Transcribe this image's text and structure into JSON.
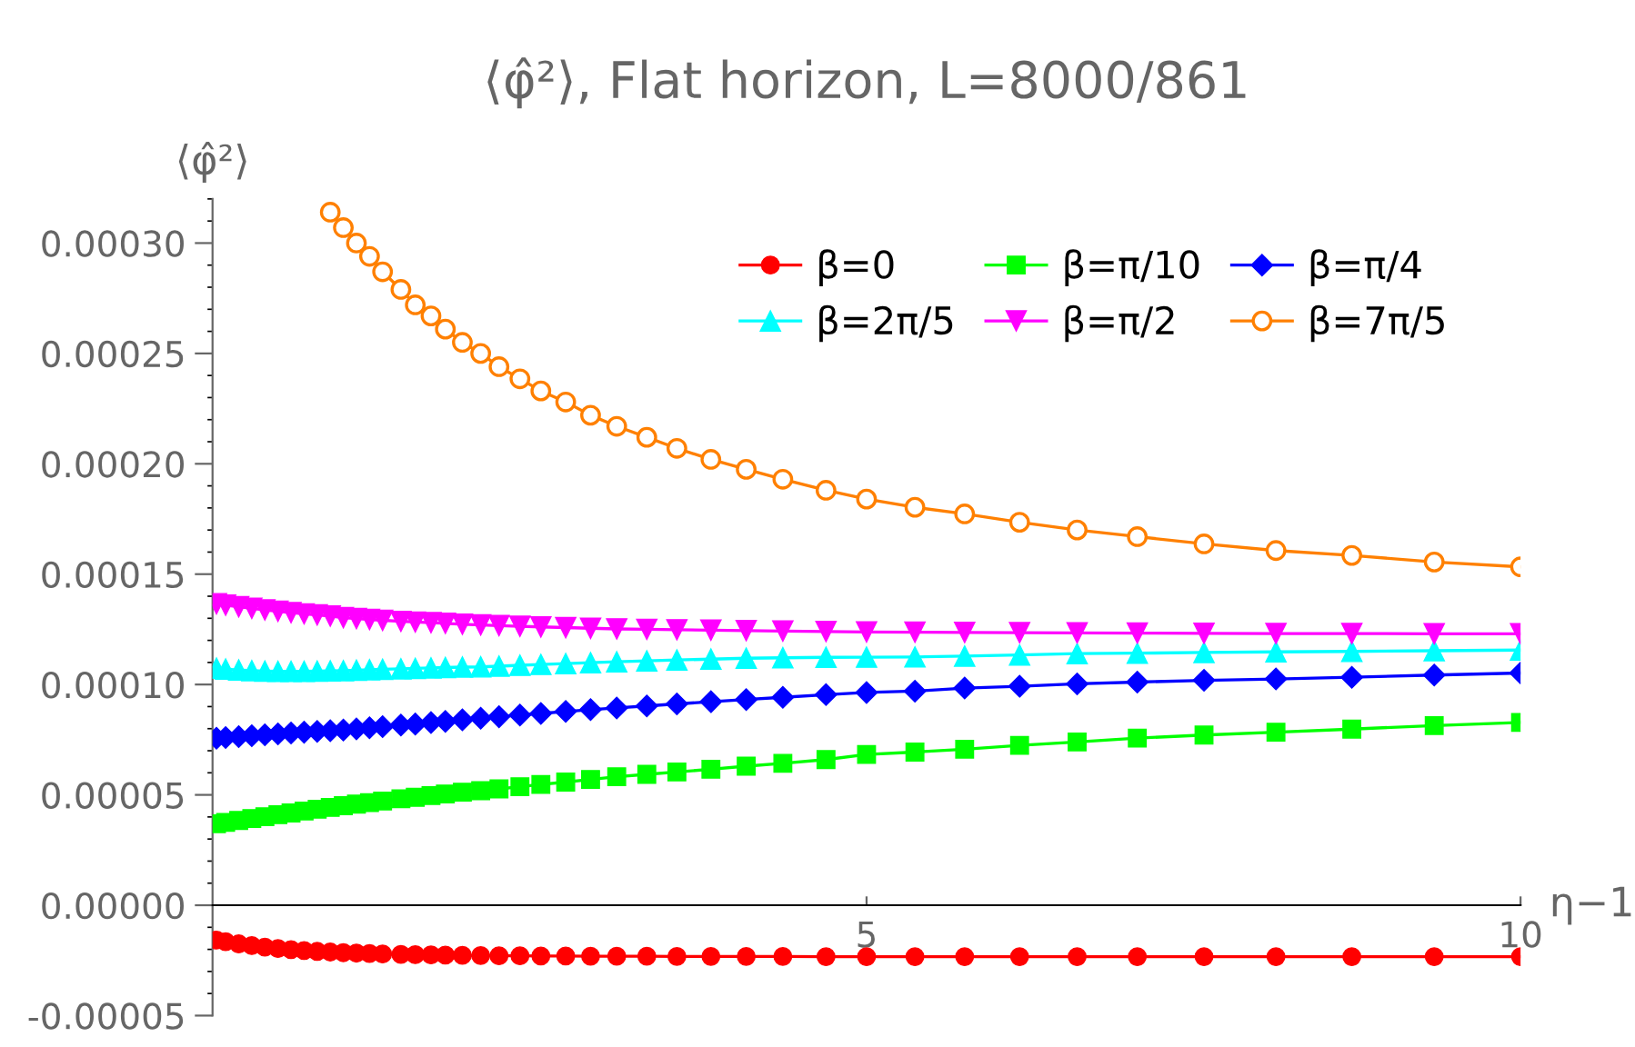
{
  "chart_data": {
    "type": "line",
    "title": "⟨φ̂²⟩, Flat horizon, L=8000/861",
    "xlabel": "η−1",
    "ylabel": "⟨φ̂²⟩",
    "x": [
      0.03,
      0.1,
      0.2,
      0.3,
      0.4,
      0.5,
      0.6,
      0.7,
      0.8,
      0.9,
      1.0,
      1.1,
      1.2,
      1.3,
      1.44,
      1.55,
      1.67,
      1.78,
      1.91,
      2.05,
      2.19,
      2.35,
      2.51,
      2.7,
      2.89,
      3.09,
      3.32,
      3.55,
      3.81,
      4.08,
      4.36,
      4.69,
      5.0,
      5.37,
      5.75,
      6.17,
      6.61,
      7.07,
      7.58,
      8.13,
      8.71,
      9.34,
      10.0
    ],
    "series": [
      {
        "name": "β=0",
        "color": "#ff0000",
        "marker": "circle",
        "values": [
          -1.58e-05,
          -1.65e-05,
          -1.75e-05,
          -1.83e-05,
          -1.9e-05,
          -1.96e-05,
          -2.01e-05,
          -2.05e-05,
          -2.09e-05,
          -2.12e-05,
          -2.15e-05,
          -2.17e-05,
          -2.19e-05,
          -2.21e-05,
          -2.23e-05,
          -2.24e-05,
          -2.25e-05,
          -2.26e-05,
          -2.27e-05,
          -2.28e-05,
          -2.29e-05,
          -2.29e-05,
          -2.3e-05,
          -2.3e-05,
          -2.31e-05,
          -2.31e-05,
          -2.31e-05,
          -2.32e-05,
          -2.32e-05,
          -2.32e-05,
          -2.32e-05,
          -2.33e-05,
          -2.33e-05,
          -2.33e-05,
          -2.33e-05,
          -2.33e-05,
          -2.33e-05,
          -2.33e-05,
          -2.33e-05,
          -2.33e-05,
          -2.33e-05,
          -2.33e-05,
          -2.33e-05
        ]
      },
      {
        "name": "β=π/10",
        "color": "#00ff00",
        "marker": "square",
        "values": [
          3.69e-05,
          3.75e-05,
          3.84e-05,
          3.93e-05,
          4.01e-05,
          4.1e-05,
          4.18e-05,
          4.27e-05,
          4.35e-05,
          4.43e-05,
          4.51e-05,
          4.58e-05,
          4.65e-05,
          4.72e-05,
          4.82e-05,
          4.89e-05,
          4.97e-05,
          5.04e-05,
          5.12e-05,
          5.19e-05,
          5.27e-05,
          5.37e-05,
          5.47e-05,
          5.58e-05,
          5.7e-05,
          5.82e-05,
          5.93e-05,
          6.04e-05,
          6.16e-05,
          6.3e-05,
          6.43e-05,
          6.6e-05,
          6.83e-05,
          6.94e-05,
          7.07e-05,
          7.24e-05,
          7.4e-05,
          7.57e-05,
          7.71e-05,
          7.84e-05,
          7.98e-05,
          8.14e-05,
          8.28e-05
        ]
      },
      {
        "name": "β=π/4",
        "color": "#0000ff",
        "marker": "diamond",
        "values": [
          7.57e-05,
          7.6e-05,
          7.64e-05,
          7.68e-05,
          7.72e-05,
          7.76e-05,
          7.8e-05,
          7.84e-05,
          7.88e-05,
          7.91e-05,
          7.94e-05,
          7.99e-05,
          8.04e-05,
          8.09e-05,
          8.16e-05,
          8.21e-05,
          8.28e-05,
          8.33e-05,
          8.4e-05,
          8.47e-05,
          8.54e-05,
          8.62e-05,
          8.69e-05,
          8.78e-05,
          8.86e-05,
          8.94e-05,
          9.03e-05,
          9.12e-05,
          9.22e-05,
          9.32e-05,
          9.42e-05,
          9.54e-05,
          9.64e-05,
          9.7e-05,
          9.84e-05,
          9.92e-05,
          0.0001003,
          0.0001011,
          0.0001019,
          0.0001025,
          0.0001033,
          0.0001043,
          0.0001052
        ]
      },
      {
        "name": "β=2π/5",
        "color": "#00ffff",
        "marker": "triangle",
        "values": [
          0.0001074,
          0.000107,
          0.0001066,
          0.0001063,
          0.0001061,
          0.000106,
          0.000106,
          0.000106,
          0.0001061,
          0.0001062,
          0.0001063,
          0.0001065,
          0.0001067,
          0.0001069,
          0.0001071,
          0.0001073,
          0.0001075,
          0.0001077,
          0.0001079,
          0.000108,
          0.0001083,
          0.0001087,
          0.0001091,
          0.0001095,
          0.0001099,
          0.0001103,
          0.0001107,
          0.0001111,
          0.0001115,
          0.0001119,
          0.0001121,
          0.0001123,
          0.0001124,
          0.0001125,
          0.0001129,
          0.0001134,
          0.000114,
          0.0001142,
          0.0001145,
          0.0001148,
          0.000115,
          0.0001153,
          0.0001156
        ]
      },
      {
        "name": "β=π/2",
        "color": "#ff00ff",
        "marker": "triangle_down",
        "values": [
          0.0001366,
          0.000136,
          0.0001352,
          0.0001345,
          0.0001338,
          0.0001332,
          0.0001326,
          0.000132,
          0.0001315,
          0.000131,
          0.0001303,
          0.0001299,
          0.0001295,
          0.0001291,
          0.0001286,
          0.0001283,
          0.000128,
          0.0001277,
          0.0001273,
          0.000127,
          0.0001267,
          0.0001264,
          0.0001261,
          0.0001258,
          0.0001255,
          0.0001252,
          0.000125,
          0.0001248,
          0.0001246,
          0.0001244,
          0.0001242,
          0.000124,
          0.0001238,
          0.0001237,
          0.0001236,
          0.0001235,
          0.0001234,
          0.0001233,
          0.0001232,
          0.0001231,
          0.0001231,
          0.000123,
          0.000123
        ]
      },
      {
        "name": "β=7π/5",
        "color": "#ff8000",
        "marker": "circle-open",
        "values": [
          null,
          null,
          null,
          null,
          null,
          null,
          null,
          null,
          null,
          0.000314,
          0.000307,
          0.0003,
          0.000294,
          0.000287,
          0.000279,
          0.000272,
          0.000267,
          0.000261,
          0.000255,
          0.00025,
          0.000244,
          0.0002385,
          0.000233,
          0.000228,
          0.000222,
          0.000217,
          0.000212,
          0.000207,
          0.000202,
          0.0001975,
          0.000193,
          0.000188,
          0.000184,
          0.0001803,
          0.0001773,
          0.0001735,
          0.00017,
          0.000167,
          0.0001637,
          0.0001607,
          0.0001585,
          0.0001555,
          0.0001533
        ]
      }
    ],
    "xlim": [
      0,
      10
    ],
    "ylim": [
      -5e-05,
      0.00032
    ],
    "xticks": [
      5,
      10
    ],
    "yticks": [
      {
        "value": -5e-05,
        "label": "-0.00005"
      },
      {
        "value": 0,
        "label": "0.00000"
      },
      {
        "value": 5e-05,
        "label": "0.00005"
      },
      {
        "value": 0.0001,
        "label": "0.00010"
      },
      {
        "value": 0.00015,
        "label": "0.00015"
      },
      {
        "value": 0.0002,
        "label": "0.00020"
      },
      {
        "value": 0.00025,
        "label": "0.00025"
      },
      {
        "value": 0.0003,
        "label": "0.00030"
      }
    ],
    "grid": false,
    "legend": "top right",
    "line_style": "solid"
  }
}
